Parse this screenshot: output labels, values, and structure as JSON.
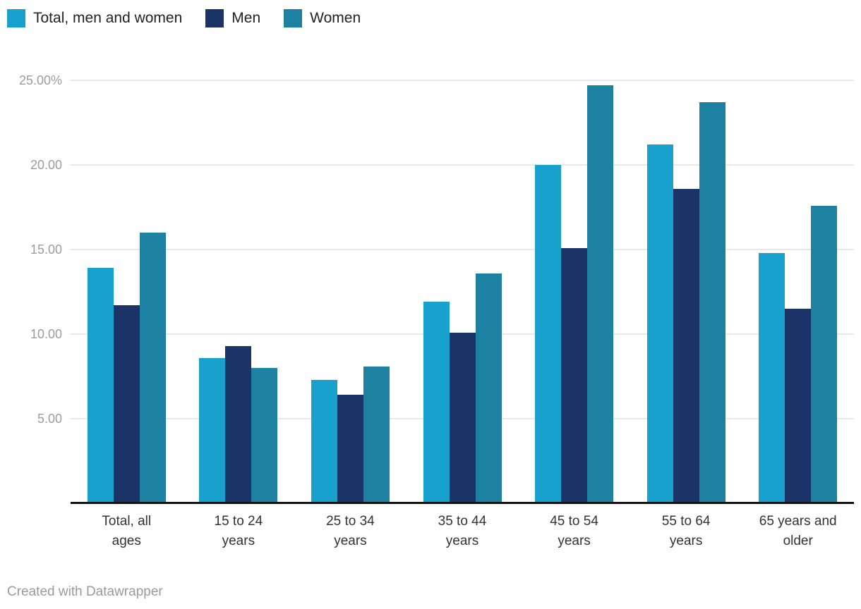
{
  "chart_data": {
    "type": "bar",
    "title": "",
    "xlabel": "",
    "ylabel": "",
    "grid": true,
    "legend_position": "top",
    "ylim": [
      0,
      26
    ],
    "yticks": [
      {
        "value": 5,
        "label": "5.00"
      },
      {
        "value": 10,
        "label": "10.00"
      },
      {
        "value": 15,
        "label": "15.00"
      },
      {
        "value": 20,
        "label": "20.00"
      },
      {
        "value": 25,
        "label": "25.00%"
      }
    ],
    "categories": [
      "Total, all ages",
      "15 to 24 years",
      "25 to 34 years",
      "35 to 44 years",
      "45 to 54 years",
      "55 to 64 years",
      "65 years and older"
    ],
    "categories_lines": [
      [
        "Total, all",
        "ages"
      ],
      [
        "15 to 24",
        "years"
      ],
      [
        "25 to 34",
        "years"
      ],
      [
        "35 to 44",
        "years"
      ],
      [
        "45 to 54",
        "years"
      ],
      [
        "55 to 64",
        "years"
      ],
      [
        "65 years and",
        "older"
      ]
    ],
    "series": [
      {
        "name": "Total, men and women",
        "color": "#18a1cd",
        "values": [
          13.9,
          8.6,
          7.3,
          11.9,
          20.0,
          21.2,
          14.8
        ]
      },
      {
        "name": "Men",
        "color": "#1b3367",
        "values": [
          11.7,
          9.3,
          6.4,
          10.1,
          15.1,
          18.6,
          11.5
        ]
      },
      {
        "name": "Women",
        "color": "#1d81a2",
        "values": [
          16.0,
          8.0,
          8.1,
          13.6,
          24.7,
          23.7,
          17.6
        ]
      }
    ]
  },
  "colors": {
    "gridline": "#e9e9e9",
    "baseline": "#141414",
    "y_label": "#9c9c9c",
    "x_label": "#333333",
    "legend_text": "#222222",
    "footer_text": "#9b9b9b"
  },
  "footer": {
    "credit": "Created with Datawrapper"
  }
}
